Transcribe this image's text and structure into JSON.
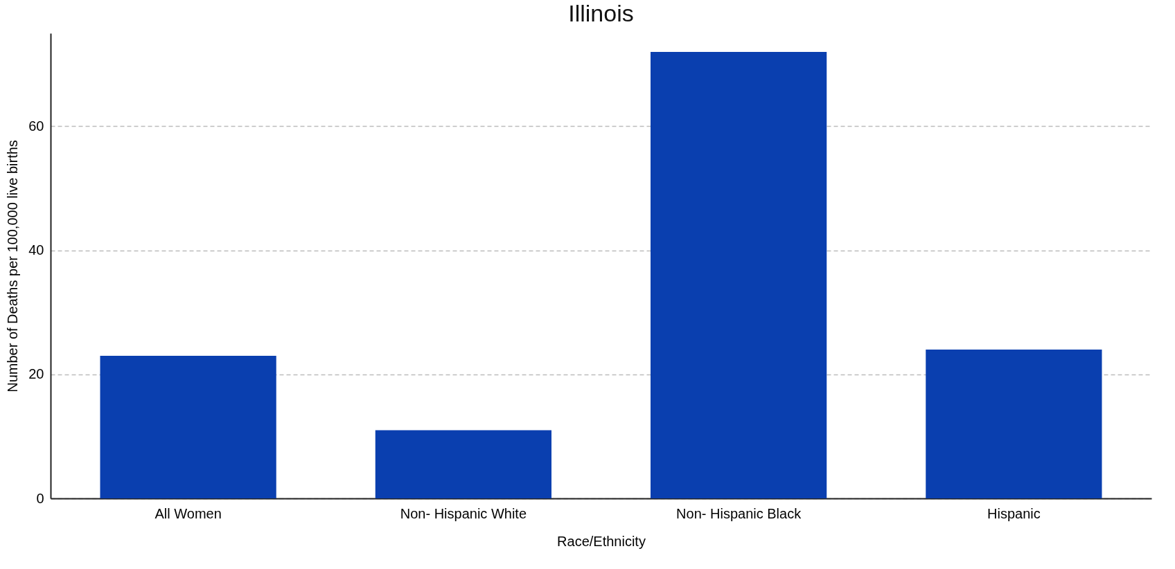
{
  "chart_data": {
    "type": "bar",
    "title": "Illinois",
    "xlabel": "Race/Ethnicity",
    "ylabel": "Number of Deaths per 100,000 live births",
    "categories": [
      "All Women",
      "Non- Hispanic White",
      "Non- Hispanic Black",
      "Hispanic"
    ],
    "values": [
      23,
      11,
      72,
      24
    ],
    "color": "#0a3faf",
    "ylim": [
      0,
      75
    ],
    "yticks": [
      0,
      20,
      40,
      60
    ],
    "grid": "y"
  }
}
